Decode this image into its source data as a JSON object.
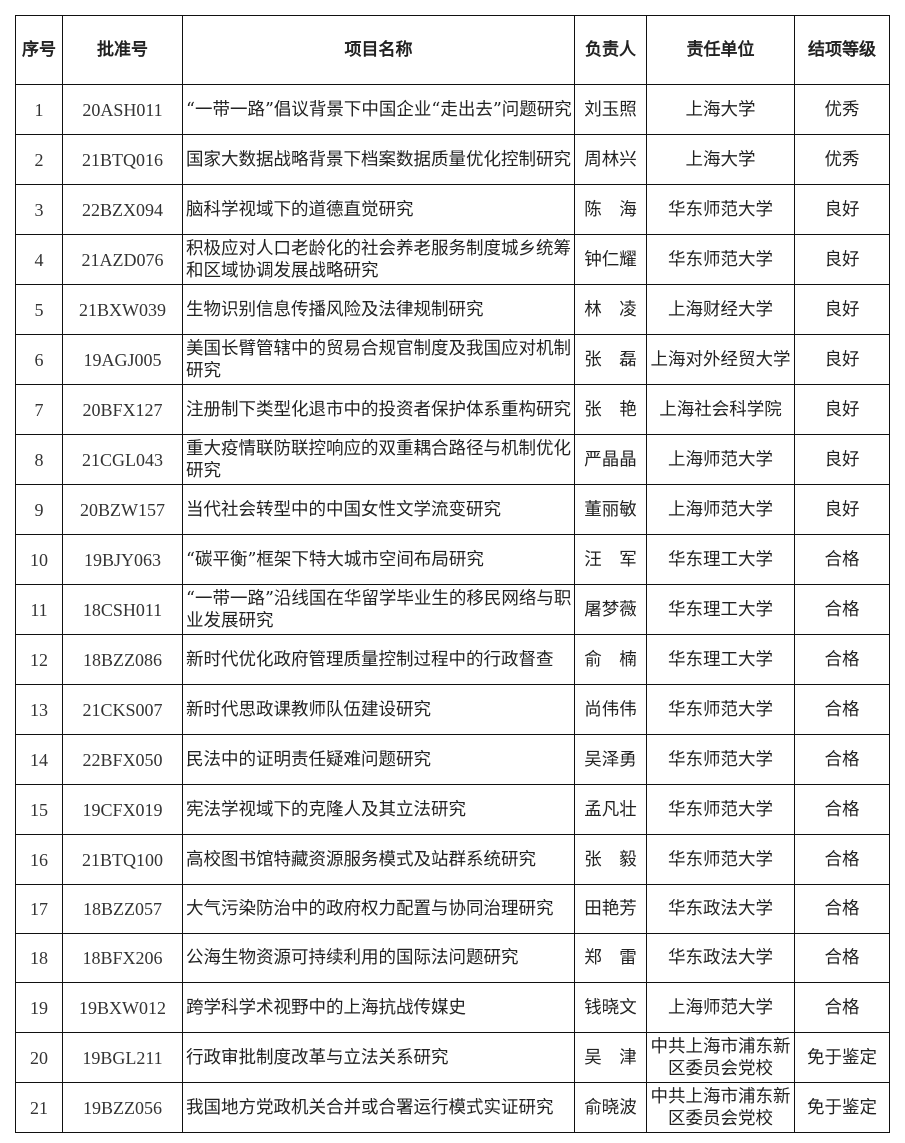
{
  "headers": [
    "序号",
    "批准号",
    "项目名称",
    "负责人",
    "责任单位",
    "结项等级"
  ],
  "rows": [
    {
      "no": "1",
      "code": "20ASH011",
      "title": "“一带一路”倡议背景下中国企业“走出去”问题研究",
      "person": "刘玉照",
      "unit": "上海大学",
      "grade": "优秀"
    },
    {
      "no": "2",
      "code": "21BTQ016",
      "title": "国家大数据战略背景下档案数据质量优化控制研究",
      "person": "周林兴",
      "unit": "上海大学",
      "grade": "优秀"
    },
    {
      "no": "3",
      "code": "22BZX094",
      "title": "脑科学视域下的道德直觉研究",
      "person": "陈　海",
      "unit": "华东师范大学",
      "grade": "良好"
    },
    {
      "no": "4",
      "code": "21AZD076",
      "title": "积极应对人口老龄化的社会养老服务制度城乡统筹和区域协调发展战略研究",
      "person": "钟仁耀",
      "unit": "华东师范大学",
      "grade": "良好"
    },
    {
      "no": "5",
      "code": "21BXW039",
      "title": "生物识别信息传播风险及法律规制研究",
      "person": "林　凌",
      "unit": "上海财经大学",
      "grade": "良好"
    },
    {
      "no": "6",
      "code": "19AGJ005",
      "title": "美国长臂管辖中的贸易合规官制度及我国应对机制研究",
      "person": "张　磊",
      "unit": "上海对外经贸大学",
      "grade": "良好"
    },
    {
      "no": "7",
      "code": "20BFX127",
      "title": "注册制下类型化退市中的投资者保护体系重构研究",
      "person": "张　艳",
      "unit": "上海社会科学院",
      "grade": "良好"
    },
    {
      "no": "8",
      "code": "21CGL043",
      "title": "重大疫情联防联控响应的双重耦合路径与机制优化研究",
      "person": "严晶晶",
      "unit": "上海师范大学",
      "grade": "良好"
    },
    {
      "no": "9",
      "code": "20BZW157",
      "title": "当代社会转型中的中国女性文学流变研究",
      "person": "董丽敏",
      "unit": "上海师范大学",
      "grade": "良好"
    },
    {
      "no": "10",
      "code": "19BJY063",
      "title": "“碳平衡”框架下特大城市空间布局研究",
      "person": "汪　军",
      "unit": "华东理工大学",
      "grade": "合格"
    },
    {
      "no": "11",
      "code": "18CSH011",
      "title": "“一带一路”沿线国在华留学毕业生的移民网络与职业发展研究",
      "person": "屠梦薇",
      "unit": "华东理工大学",
      "grade": "合格"
    },
    {
      "no": "12",
      "code": "18BZZ086",
      "title": "新时代优化政府管理质量控制过程中的行政督查",
      "person": "俞　楠",
      "unit": "华东理工大学",
      "grade": "合格"
    },
    {
      "no": "13",
      "code": "21CKS007",
      "title": "新时代思政课教师队伍建设研究",
      "person": "尚伟伟",
      "unit": "华东师范大学",
      "grade": "合格"
    },
    {
      "no": "14",
      "code": "22BFX050",
      "title": "民法中的证明责任疑难问题研究",
      "person": "吴泽勇",
      "unit": "华东师范大学",
      "grade": "合格"
    },
    {
      "no": "15",
      "code": "19CFX019",
      "title": "宪法学视域下的克隆人及其立法研究",
      "person": "孟凡壮",
      "unit": "华东师范大学",
      "grade": "合格"
    },
    {
      "no": "16",
      "code": "21BTQ100",
      "title": "高校图书馆特藏资源服务模式及站群系统研究",
      "person": "张　毅",
      "unit": "华东师范大学",
      "grade": "合格"
    },
    {
      "no": "17",
      "code": "18BZZ057",
      "title": "大气污染防治中的政府权力配置与协同治理研究",
      "person": "田艳芳",
      "unit": "华东政法大学",
      "grade": "合格"
    },
    {
      "no": "18",
      "code": "18BFX206",
      "title": "公海生物资源可持续利用的国际法问题研究",
      "person": "郑　雷",
      "unit": "华东政法大学",
      "grade": "合格"
    },
    {
      "no": "19",
      "code": "19BXW012",
      "title": "跨学科学术视野中的上海抗战传媒史",
      "person": "钱晓文",
      "unit": "上海师范大学",
      "grade": "合格"
    },
    {
      "no": "20",
      "code": "19BGL211",
      "title": "行政审批制度改革与立法关系研究",
      "person": "吴　津",
      "unit": "中共上海市浦东新区委员会党校",
      "grade": "免于鉴定"
    },
    {
      "no": "21",
      "code": "19BZZ056",
      "title": "我国地方党政机关合并或合署运行模式实证研究",
      "person": "俞晓波",
      "unit": "中共上海市浦东新区委员会党校",
      "grade": "免于鉴定"
    }
  ]
}
